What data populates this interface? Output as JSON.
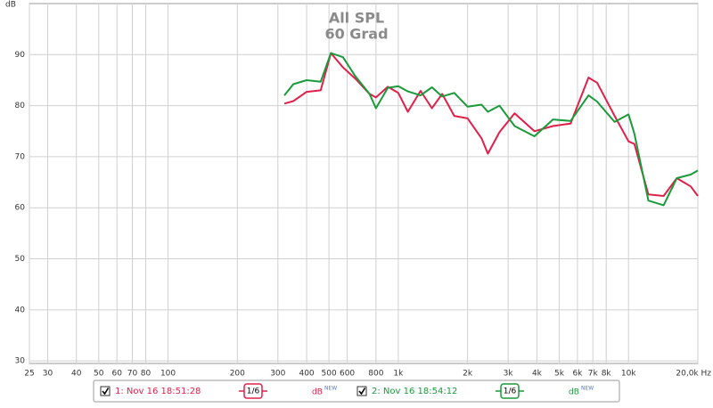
{
  "chart_data": {
    "type": "line",
    "title": "All SPL",
    "subtitle": "60 Grad",
    "y_label": "dB",
    "log_x": true,
    "grid": true,
    "xlim": [
      25,
      20000
    ],
    "ylim": [
      29.5,
      100
    ],
    "xticks": [
      25,
      30,
      40,
      50,
      60,
      70,
      80,
      100,
      200,
      300,
      400,
      500,
      600,
      800,
      {
        "value": 1000,
        "label": "1k"
      },
      {
        "value": 2000,
        "label": "2k"
      },
      {
        "value": 3000,
        "label": "3k"
      },
      {
        "value": 4000,
        "label": "4k"
      },
      {
        "value": 5000,
        "label": "5k"
      },
      {
        "value": 6000,
        "label": "6k"
      },
      {
        "value": 7000,
        "label": "7k"
      },
      {
        "value": 8000,
        "label": "8k"
      },
      {
        "value": 10000,
        "label": "10k"
      },
      {
        "value": 20000,
        "label": "20,0k Hz"
      }
    ],
    "yticks": [
      30,
      40,
      50,
      60,
      70,
      80,
      90
    ],
    "x": [
      320,
      350,
      400,
      460,
      510,
      575,
      650,
      750,
      800,
      900,
      1000,
      1100,
      1250,
      1400,
      1550,
      1750,
      2000,
      2300,
      2450,
      2750,
      3200,
      3900,
      4700,
      5600,
      6700,
      7300,
      8700,
      10000,
      10600,
      12200,
      14200,
      16200,
      18600,
      20000
    ],
    "series": [
      {
        "name": "1: Nov 16 18:51:28",
        "smoothing": "1/6",
        "unit": "dB",
        "badge": "NEW",
        "color": "#e0204a",
        "values": [
          80.4,
          80.9,
          82.7,
          83.0,
          90.3,
          87.5,
          85.3,
          82.3,
          81.6,
          83.7,
          82.5,
          78.8,
          82.9,
          79.5,
          82.3,
          78.0,
          77.5,
          73.6,
          70.6,
          74.8,
          78.5,
          75.0,
          76.0,
          76.5,
          85.5,
          84.5,
          78.0,
          73.0,
          72.5,
          62.6,
          62.3,
          65.8,
          64.2,
          62.3
        ]
      },
      {
        "name": "2: Nov 16 18:54:12",
        "smoothing": "1/6",
        "unit": "dB",
        "badge": "NEW",
        "color": "#1a9a3a",
        "values": [
          82.0,
          84.2,
          85.0,
          84.7,
          90.3,
          89.5,
          85.8,
          82.3,
          79.5,
          83.5,
          83.8,
          82.8,
          82.0,
          83.6,
          81.8,
          82.5,
          79.8,
          80.2,
          78.8,
          80.0,
          76.0,
          74.0,
          77.3,
          77.0,
          82.0,
          80.8,
          76.8,
          78.3,
          74.5,
          61.4,
          60.5,
          65.8,
          66.5,
          67.3
        ]
      }
    ]
  }
}
